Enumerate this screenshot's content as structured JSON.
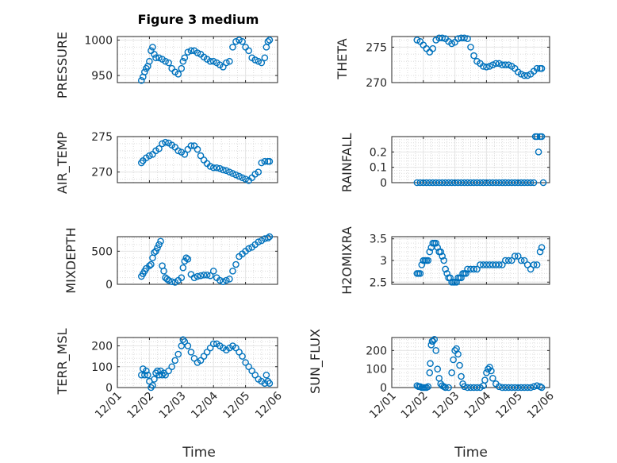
{
  "colors": {
    "marker": "#0072BD",
    "grid": "#e6e6e6",
    "axis": "#262626"
  },
  "chart_data": [
    {
      "type": "scatter",
      "title": "Figure 3 medium",
      "ylabel": "PRESSURE",
      "xlabel": "",
      "ylim": [
        940,
        1005
      ],
      "yticks": [
        "950",
        "1000"
      ],
      "ytick_values": [
        950,
        1000
      ],
      "xlim": [
        1,
        6
      ],
      "xticklabels": [
        "12/01",
        "12/02",
        "12/03",
        "12/04",
        "12/05",
        "12/06"
      ],
      "show_xticklabels": false,
      "grid": true,
      "x": [
        1.75,
        1.8,
        1.85,
        1.9,
        1.95,
        2.0,
        2.05,
        2.1,
        2.15,
        2.2,
        2.3,
        2.4,
        2.5,
        2.6,
        2.7,
        2.8,
        2.9,
        3.0,
        3.05,
        3.1,
        3.2,
        3.3,
        3.4,
        3.5,
        3.6,
        3.7,
        3.8,
        3.9,
        4.0,
        4.1,
        4.2,
        4.3,
        4.4,
        4.5,
        4.6,
        4.7,
        4.8,
        4.9,
        5.0,
        5.1,
        5.2,
        5.3,
        5.4,
        5.5,
        5.6,
        5.65,
        5.7,
        5.75
      ],
      "y": [
        943,
        948,
        955,
        960,
        963,
        970,
        985,
        990,
        980,
        975,
        975,
        973,
        970,
        968,
        960,
        955,
        952,
        960,
        970,
        975,
        983,
        985,
        985,
        982,
        980,
        976,
        973,
        970,
        970,
        968,
        965,
        962,
        968,
        970,
        990,
        998,
        1000,
        998,
        990,
        985,
        975,
        972,
        970,
        968,
        975,
        990,
        998,
        1000
      ]
    },
    {
      "type": "scatter",
      "ylabel": "THETA",
      "xlabel": "",
      "ylim": [
        270,
        276.5
      ],
      "yticks": [
        "270",
        "275"
      ],
      "ytick_values": [
        270,
        275
      ],
      "xlim": [
        1,
        6
      ],
      "xticklabels": [
        "12/01",
        "12/02",
        "12/03",
        "12/04",
        "12/05",
        "12/06"
      ],
      "show_xticklabels": false,
      "grid": true,
      "x": [
        1.8,
        1.9,
        2.0,
        2.1,
        2.2,
        2.3,
        2.4,
        2.5,
        2.6,
        2.7,
        2.8,
        2.9,
        3.0,
        3.1,
        3.2,
        3.3,
        3.4,
        3.5,
        3.6,
        3.7,
        3.8,
        3.9,
        4.0,
        4.1,
        4.2,
        4.3,
        4.4,
        4.5,
        4.6,
        4.7,
        4.8,
        4.9,
        5.0,
        5.1,
        5.2,
        5.3,
        5.4,
        5.5,
        5.6,
        5.7,
        5.75
      ],
      "y": [
        276,
        275.8,
        275.3,
        274.8,
        274.3,
        274.8,
        276,
        276.3,
        276.3,
        276.2,
        275.8,
        275.5,
        275.7,
        276.2,
        276.3,
        276.3,
        276.2,
        275,
        273.8,
        273,
        272.7,
        272.3,
        272.2,
        272.3,
        272.5,
        272.7,
        272.7,
        272.5,
        272.5,
        272.5,
        272.3,
        272,
        271.5,
        271.2,
        271,
        271,
        271.2,
        271.6,
        272,
        272,
        272
      ]
    },
    {
      "type": "scatter",
      "ylabel": "AIR_TEMP",
      "xlabel": "",
      "ylim": [
        268.5,
        275
      ],
      "yticks": [
        "270",
        "275"
      ],
      "ytick_values": [
        270,
        275
      ],
      "xlim": [
        1,
        6
      ],
      "xticklabels": [
        "12/01",
        "12/02",
        "12/03",
        "12/04",
        "12/05",
        "12/06"
      ],
      "show_xticklabels": false,
      "grid": true,
      "x": [
        1.75,
        1.8,
        1.9,
        2.0,
        2.1,
        2.2,
        2.3,
        2.4,
        2.5,
        2.6,
        2.7,
        2.8,
        2.9,
        3.0,
        3.1,
        3.2,
        3.3,
        3.4,
        3.5,
        3.6,
        3.7,
        3.8,
        3.9,
        4.0,
        4.1,
        4.2,
        4.3,
        4.4,
        4.5,
        4.6,
        4.7,
        4.8,
        4.9,
        5.0,
        5.1,
        5.2,
        5.3,
        5.4,
        5.5,
        5.6,
        5.7,
        5.75
      ],
      "y": [
        271.3,
        271.6,
        272,
        272.3,
        272.5,
        273,
        273.3,
        274,
        274.2,
        274.1,
        273.8,
        273.5,
        273,
        272.8,
        272.5,
        273.2,
        273.7,
        273.7,
        273.2,
        272.3,
        271.7,
        271.2,
        270.8,
        270.6,
        270.6,
        270.5,
        270.3,
        270.2,
        270,
        269.8,
        269.6,
        269.4,
        269.2,
        269,
        268.8,
        269.2,
        269.7,
        270,
        271.3,
        271.5,
        271.5,
        271.5
      ]
    },
    {
      "type": "scatter",
      "ylabel": "RAINFALL",
      "xlabel": "",
      "ylim": [
        0,
        0.3
      ],
      "yticks": [
        "0",
        "0.1",
        "0.2"
      ],
      "ytick_values": [
        0,
        0.1,
        0.2
      ],
      "xlim": [
        1,
        6
      ],
      "xticklabels": [
        "12/01",
        "12/02",
        "12/03",
        "12/04",
        "12/05",
        "12/06"
      ],
      "show_xticklabels": false,
      "grid": true,
      "x": [
        1.8,
        1.9,
        2.0,
        2.1,
        2.2,
        2.3,
        2.4,
        2.5,
        2.6,
        2.7,
        2.8,
        2.9,
        3.0,
        3.1,
        3.2,
        3.3,
        3.4,
        3.5,
        3.6,
        3.7,
        3.8,
        3.9,
        4.0,
        4.1,
        4.2,
        4.3,
        4.4,
        4.5,
        4.6,
        4.7,
        4.8,
        4.9,
        5.0,
        5.1,
        5.2,
        5.3,
        5.4,
        5.5,
        5.55,
        5.6,
        5.65,
        5.7,
        5.75,
        5.8
      ],
      "y": [
        0,
        0,
        0,
        0,
        0,
        0,
        0,
        0,
        0,
        0,
        0,
        0,
        0,
        0,
        0,
        0,
        0,
        0,
        0,
        0,
        0,
        0,
        0,
        0,
        0,
        0,
        0,
        0,
        0,
        0,
        0,
        0,
        0,
        0,
        0,
        0,
        0,
        0,
        0.3,
        0.3,
        0.2,
        0.3,
        0.3,
        0
      ]
    },
    {
      "type": "scatter",
      "ylabel": "MIXDEPTH",
      "xlabel": "",
      "ylim": [
        0,
        720
      ],
      "yticks": [
        "0",
        "500"
      ],
      "ytick_values": [
        0,
        500
      ],
      "xlim": [
        1,
        6
      ],
      "xticklabels": [
        "12/01",
        "12/02",
        "12/03",
        "12/04",
        "12/05",
        "12/06"
      ],
      "show_xticklabels": false,
      "grid": true,
      "x": [
        1.75,
        1.8,
        1.85,
        1.9,
        2.0,
        2.05,
        2.1,
        2.15,
        2.2,
        2.25,
        2.3,
        2.35,
        2.4,
        2.45,
        2.5,
        2.55,
        2.6,
        2.7,
        2.8,
        2.9,
        3.0,
        3.05,
        3.1,
        3.15,
        3.2,
        3.3,
        3.4,
        3.5,
        3.6,
        3.7,
        3.8,
        3.9,
        4.0,
        4.1,
        4.2,
        4.3,
        4.4,
        4.5,
        4.6,
        4.7,
        4.8,
        4.9,
        5.0,
        5.1,
        5.2,
        5.3,
        5.4,
        5.5,
        5.6,
        5.7,
        5.75
      ],
      "y": [
        120,
        160,
        200,
        240,
        280,
        300,
        400,
        480,
        500,
        550,
        600,
        650,
        280,
        200,
        100,
        80,
        60,
        40,
        30,
        60,
        100,
        250,
        350,
        400,
        380,
        150,
        100,
        120,
        130,
        140,
        140,
        130,
        200,
        100,
        60,
        40,
        60,
        80,
        200,
        300,
        420,
        460,
        500,
        540,
        560,
        600,
        640,
        660,
        690,
        700,
        720
      ]
    },
    {
      "type": "scatter",
      "ylabel": "H2OMIXRA",
      "xlabel": "",
      "ylim": [
        2.45,
        3.55
      ],
      "yticks": [
        "2.5",
        "3",
        "3.5"
      ],
      "ytick_values": [
        2.5,
        3,
        3.5
      ],
      "xlim": [
        1,
        6
      ],
      "xticklabels": [
        "12/01",
        "12/02",
        "12/03",
        "12/04",
        "12/05",
        "12/06"
      ],
      "show_xticklabels": false,
      "grid": true,
      "x": [
        1.8,
        1.85,
        1.9,
        1.95,
        2.0,
        2.05,
        2.1,
        2.15,
        2.2,
        2.25,
        2.3,
        2.35,
        2.4,
        2.45,
        2.5,
        2.55,
        2.6,
        2.65,
        2.7,
        2.75,
        2.8,
        2.85,
        2.9,
        2.95,
        3.0,
        3.05,
        3.1,
        3.15,
        3.2,
        3.25,
        3.3,
        3.35,
        3.4,
        3.5,
        3.6,
        3.7,
        3.8,
        3.9,
        4.0,
        4.1,
        4.2,
        4.3,
        4.4,
        4.5,
        4.6,
        4.7,
        4.8,
        4.9,
        5.0,
        5.1,
        5.2,
        5.3,
        5.4,
        5.5,
        5.6,
        5.7,
        5.75
      ],
      "y": [
        2.7,
        2.7,
        2.7,
        2.9,
        3,
        3,
        3,
        3,
        3.2,
        3.3,
        3.4,
        3.4,
        3.4,
        3.3,
        3.2,
        3.2,
        3.1,
        3,
        2.8,
        2.7,
        2.6,
        2.6,
        2.5,
        2.5,
        2.5,
        2.5,
        2.6,
        2.6,
        2.6,
        2.7,
        2.7,
        2.7,
        2.8,
        2.8,
        2.8,
        2.8,
        2.9,
        2.9,
        2.9,
        2.9,
        2.9,
        2.9,
        2.9,
        2.9,
        3,
        3,
        3,
        3.1,
        3.1,
        3,
        3,
        2.9,
        2.8,
        2.9,
        2.9,
        3.2,
        3.3
      ]
    },
    {
      "type": "scatter",
      "ylabel": "TERR_MSL",
      "xlabel": "Time",
      "ylim": [
        0,
        240
      ],
      "yticks": [
        "0",
        "100",
        "200"
      ],
      "ytick_values": [
        0,
        100,
        200
      ],
      "xlim": [
        1,
        6
      ],
      "xticklabels": [
        "12/01",
        "12/02",
        "12/03",
        "12/04",
        "12/05",
        "12/06"
      ],
      "show_xticklabels": true,
      "grid": true,
      "x": [
        1.75,
        1.8,
        1.85,
        1.9,
        1.95,
        2.0,
        2.05,
        2.1,
        2.15,
        2.2,
        2.25,
        2.3,
        2.35,
        2.4,
        2.45,
        2.5,
        2.6,
        2.7,
        2.8,
        2.9,
        3.0,
        3.05,
        3.1,
        3.2,
        3.3,
        3.4,
        3.5,
        3.6,
        3.7,
        3.8,
        3.9,
        4.0,
        4.1,
        4.2,
        4.3,
        4.4,
        4.5,
        4.6,
        4.7,
        4.8,
        4.9,
        5.0,
        5.1,
        5.2,
        5.3,
        5.4,
        5.5,
        5.6,
        5.65,
        5.7,
        5.75
      ],
      "y": [
        60,
        90,
        60,
        80,
        60,
        30,
        0,
        10,
        40,
        70,
        80,
        60,
        80,
        60,
        70,
        60,
        80,
        100,
        130,
        160,
        200,
        230,
        220,
        200,
        170,
        140,
        120,
        130,
        150,
        170,
        190,
        210,
        210,
        200,
        190,
        180,
        190,
        200,
        190,
        170,
        150,
        120,
        100,
        80,
        60,
        40,
        30,
        20,
        60,
        30,
        20
      ]
    },
    {
      "type": "scatter",
      "ylabel": "SUN_FLUX",
      "xlabel": "Time",
      "ylim": [
        0,
        270
      ],
      "yticks": [
        "0",
        "100",
        "200"
      ],
      "ytick_values": [
        0,
        100,
        200
      ],
      "xlim": [
        1,
        6
      ],
      "xticklabels": [
        "12/01",
        "12/02",
        "12/03",
        "12/04",
        "12/05",
        "12/06"
      ],
      "show_xticklabels": true,
      "grid": true,
      "x": [
        1.8,
        1.85,
        1.9,
        1.95,
        2.0,
        2.05,
        2.1,
        2.15,
        2.2,
        2.22,
        2.25,
        2.28,
        2.3,
        2.35,
        2.4,
        2.45,
        2.5,
        2.55,
        2.6,
        2.65,
        2.7,
        2.8,
        2.9,
        2.95,
        3.0,
        3.05,
        3.1,
        3.15,
        3.2,
        3.25,
        3.3,
        3.4,
        3.5,
        3.6,
        3.7,
        3.8,
        3.9,
        3.95,
        4.0,
        4.05,
        4.1,
        4.15,
        4.2,
        4.3,
        4.4,
        4.5,
        4.6,
        4.7,
        4.8,
        4.9,
        5.0,
        5.1,
        5.2,
        5.3,
        5.4,
        5.5,
        5.6,
        5.7,
        5.75
      ],
      "y": [
        10,
        5,
        5,
        0,
        0,
        0,
        0,
        5,
        80,
        130,
        230,
        250,
        250,
        260,
        200,
        100,
        50,
        20,
        10,
        5,
        0,
        0,
        80,
        150,
        200,
        210,
        180,
        120,
        60,
        20,
        5,
        0,
        0,
        0,
        0,
        0,
        10,
        40,
        80,
        100,
        110,
        90,
        50,
        20,
        5,
        0,
        0,
        0,
        0,
        0,
        0,
        0,
        0,
        0,
        0,
        5,
        10,
        5,
        0
      ]
    }
  ]
}
